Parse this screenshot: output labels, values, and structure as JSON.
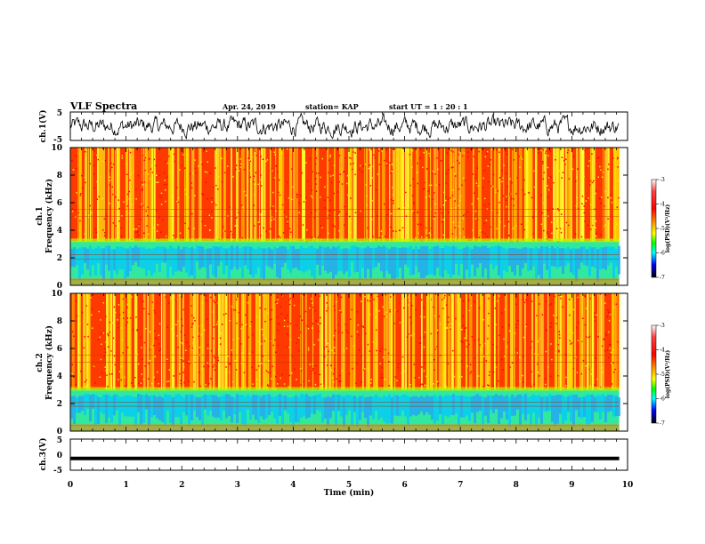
{
  "header": {
    "title": "VLF Spectra",
    "date": "Apr. 24, 2019",
    "station": "station= KAP",
    "start": "start  UT =   1 : 20 : 1"
  },
  "colors": {
    "waveform": "#000000",
    "spectrogram_dominant": "#ff2a00",
    "spectrogram_secondary": "#ffff00",
    "spectrogram_low": "#00e0ff"
  },
  "chart_data": [
    {
      "name": "ch1-waveform",
      "type": "line",
      "ylabel": "ch.1(V)",
      "ylim": [
        -5,
        5
      ],
      "yticks": [
        "5",
        "-5"
      ],
      "xlim": [
        0,
        10
      ],
      "note_values": "noisy waveform mostly between about -3 and 3 V"
    },
    {
      "name": "ch1-spectrogram",
      "type": "heatmap",
      "ylabel": "ch.1\nFrequency (kHz)",
      "ylabel_line1": "ch.1",
      "ylabel_line2": "Frequency (kHz)",
      "ylim": [
        0,
        10
      ],
      "yticks": [
        "0",
        "2",
        "4",
        "6",
        "8",
        "10"
      ],
      "xlim": [
        0,
        9.85
      ],
      "band_low_khz": [
        0,
        3.2
      ],
      "colorbar": {
        "label": "log(PSD)(V²/Hz)",
        "range": [
          -7,
          -3
        ],
        "ticks": [
          "-3",
          "-4",
          "-5",
          "-6",
          "-7"
        ]
      }
    },
    {
      "name": "ch2-spectrogram",
      "type": "heatmap",
      "ylabel_line1": "ch.2",
      "ylabel_line2": "Frequency (kHz)",
      "ylim": [
        0,
        10
      ],
      "yticks": [
        "0",
        "2",
        "4",
        "6",
        "8",
        "10"
      ],
      "xlim": [
        0,
        9.85
      ],
      "band_low_khz": [
        0,
        3.0
      ],
      "colorbar": {
        "label": "log(PSD)(V²/Hz)",
        "range": [
          -7,
          -3
        ],
        "ticks": [
          "-3",
          "-4",
          "-5",
          "-6",
          "-7"
        ]
      }
    },
    {
      "name": "ch3-waveform",
      "type": "line",
      "ylabel": "ch.3(V)",
      "ylim": [
        -5,
        5
      ],
      "yticks": [
        "5",
        "0",
        "-5"
      ],
      "xlim": [
        0,
        10
      ],
      "x": [
        0,
        9.85
      ],
      "y": [
        -1.2,
        -1.2
      ]
    }
  ],
  "xaxis": {
    "label": "Time (min)",
    "ticks": [
      "0",
      "1",
      "2",
      "3",
      "4",
      "5",
      "6",
      "7",
      "8",
      "9",
      "10"
    ]
  }
}
